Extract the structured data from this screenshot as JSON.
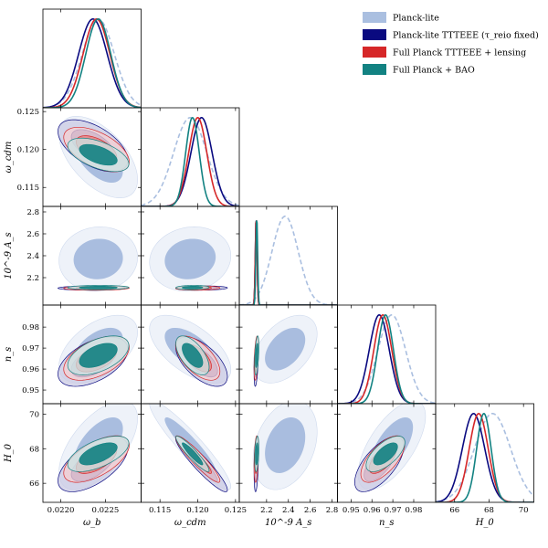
{
  "chart_data": {
    "type": "corner",
    "title": "",
    "parameters": [
      {
        "key": "omega_b",
        "label": "ω_b",
        "range": [
          0.0218,
          0.0229
        ],
        "ticks": [
          0.022,
          0.0225
        ],
        "tick_labels": [
          "0.0220",
          "0.0225"
        ]
      },
      {
        "key": "omega_cdm",
        "label": "ω_cdm",
        "range": [
          0.1125,
          0.1255
        ],
        "ticks": [
          0.115,
          0.12,
          0.125
        ],
        "tick_labels": [
          "0.115",
          "0.120",
          "0.125"
        ]
      },
      {
        "key": "As",
        "label": "10^-9 A_s",
        "range": [
          1.95,
          2.85
        ],
        "ticks": [
          2.2,
          2.4,
          2.6,
          2.8
        ],
        "tick_labels": [
          "2.2",
          "2.4",
          "2.6",
          "2.8"
        ]
      },
      {
        "key": "ns",
        "label": "n_s",
        "range": [
          0.9435,
          0.9905
        ],
        "ticks": [
          0.95,
          0.96,
          0.97,
          0.98
        ],
        "tick_labels": [
          "0.95",
          "0.96",
          "0.97",
          "0.98"
        ]
      },
      {
        "key": "H0",
        "label": "H_0",
        "range": [
          64.9,
          70.6
        ],
        "ticks": [
          66,
          68,
          70
        ],
        "tick_labels": [
          "66",
          "68",
          "70"
        ]
      }
    ],
    "series": [
      {
        "name": "Planck-lite",
        "legend_label": "Planck-lite",
        "color": "#aabfe0",
        "dashed": true,
        "means": {
          "omega_b": 0.02242,
          "omega_cdm": 0.119,
          "As": 2.37,
          "ns": 0.9695,
          "H0": 68.2
        },
        "sigmas": {
          "omega_b": 0.00018,
          "omega_cdm": 0.0022,
          "As": 0.12,
          "ns": 0.0066,
          "H0": 1.05
        }
      },
      {
        "name": "Planck-lite TTTEEE (tau_reio fixed)",
        "legend_label": "Planck-lite TTTEEE (τ_reio fixed)",
        "color": "#0a0a80",
        "dashed": false,
        "means": {
          "omega_b": 0.02236,
          "omega_cdm": 0.1205,
          "As": 2.105,
          "ns": 0.9635,
          "H0": 67.1
        },
        "sigmas": {
          "omega_b": 0.00016,
          "omega_cdm": 0.0014,
          "As": 0.008,
          "ns": 0.0048,
          "H0": 0.65
        }
      },
      {
        "name": "Full Planck TTTEEE + lensing",
        "legend_label": "Full Planck TTTEEE + lensing",
        "color": "#d62728",
        "dashed": false,
        "means": {
          "omega_b": 0.0224,
          "omega_cdm": 0.12,
          "As": 2.105,
          "ns": 0.9652,
          "H0": 67.4
        },
        "sigmas": {
          "omega_b": 0.00015,
          "omega_cdm": 0.0012,
          "As": 0.008,
          "ns": 0.0043,
          "H0": 0.55
        }
      },
      {
        "name": "Full Planck + BAO",
        "legend_label": "Full Planck + BAO",
        "color": "#128282",
        "dashed": false,
        "means": {
          "omega_b": 0.02242,
          "omega_cdm": 0.1193,
          "As": 2.11,
          "ns": 0.9665,
          "H0": 67.7
        },
        "sigmas": {
          "omega_b": 0.00014,
          "omega_cdm": 0.0009,
          "As": 0.008,
          "ns": 0.0038,
          "H0": 0.42
        }
      }
    ],
    "correlations": {
      "omega_cdm|omega_b": -0.55,
      "As|omega_b": 0.05,
      "As|omega_cdm": 0.1,
      "ns|omega_b": 0.5,
      "ns|omega_cdm": -0.6,
      "ns|As": 0.45,
      "H0|omega_b": 0.6,
      "H0|omega_cdm": -0.93,
      "H0|As": 0.3,
      "H0|ns": 0.65
    },
    "contour_levels": [
      "68%",
      "95%"
    ],
    "legend_position": "top-right"
  }
}
